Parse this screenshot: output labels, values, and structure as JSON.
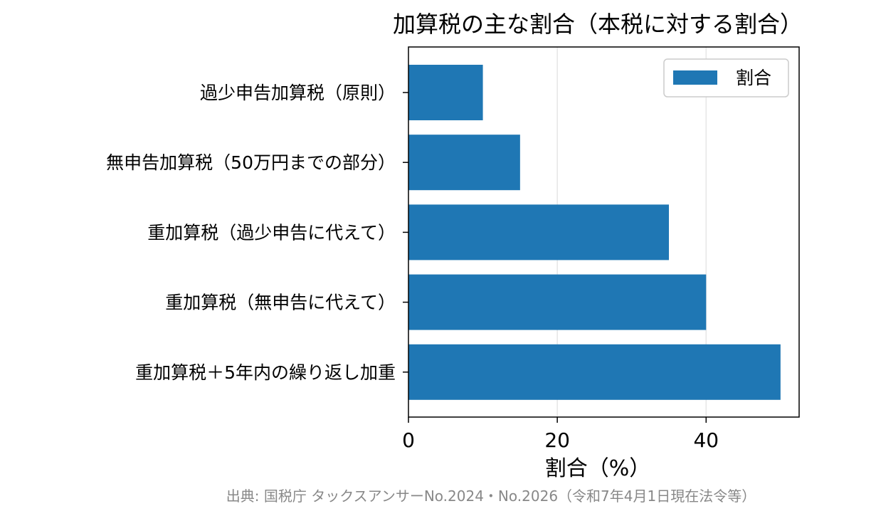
{
  "chart_data": {
    "type": "bar",
    "orientation": "horizontal",
    "title": "加算税の主な割合（本税に対する割合）",
    "categories": [
      "過少申告加算税（原則）",
      "無申告加算税（50万円までの部分）",
      "重加算税（過少申告に代えて）",
      "重加算税（無申告に代えて）",
      "重加算税＋5年内の繰り返し加重"
    ],
    "series": [
      {
        "name": "割合",
        "values": [
          10,
          15,
          35,
          40,
          50
        ]
      }
    ],
    "xlabel": "割合（%）",
    "ylabel": "",
    "xlim": [
      0,
      52.5
    ],
    "xticks": [
      "0",
      "20",
      "40"
    ],
    "grid": "vertical",
    "legend_position": "top-right",
    "bar_color": "#1f77b4",
    "source": "出典: 国税庁 タックスアンサーNo.2024・No.2026（令和7年4月1日現在法令等）"
  }
}
